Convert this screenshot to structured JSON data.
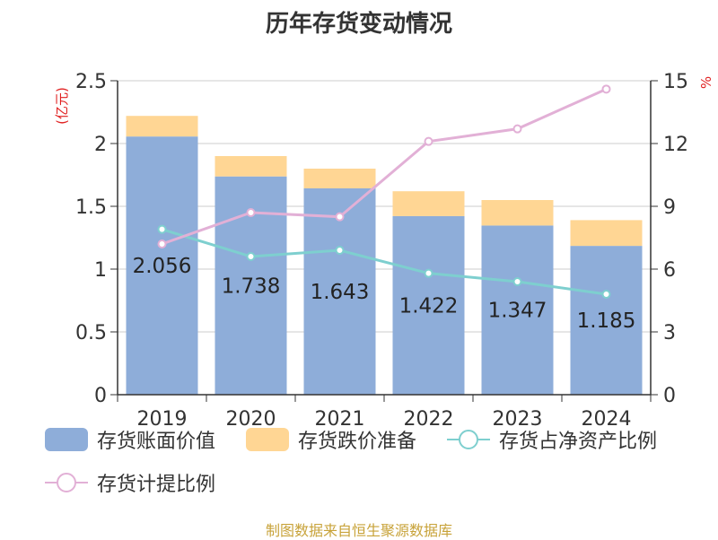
{
  "title": "历年存货变动情况",
  "source": "制图数据来自恒生聚源数据库",
  "chart_data": {
    "type": "bar",
    "categories": [
      "2019",
      "2020",
      "2021",
      "2022",
      "2023",
      "2024"
    ],
    "series": [
      {
        "name": "存货账面价值",
        "type": "bar",
        "axis": "left",
        "color": "#8eadd9",
        "values": [
          2.056,
          1.738,
          1.643,
          1.422,
          1.347,
          1.185
        ],
        "labels": [
          "2.056",
          "1.738",
          "1.643",
          "1.422",
          "1.347",
          "1.185"
        ]
      },
      {
        "name": "存货跌价准备",
        "type": "bar",
        "axis": "left",
        "color": "#ffd694",
        "values": [
          0.164,
          0.162,
          0.157,
          0.198,
          0.203,
          0.205
        ]
      },
      {
        "name": "存货占净资产比例",
        "type": "line",
        "axis": "right",
        "color": "#7ecfcf",
        "values": [
          7.9,
          6.6,
          6.9,
          5.8,
          5.4,
          4.8
        ]
      },
      {
        "name": "存货计提比例",
        "type": "line",
        "axis": "right",
        "color": "#e2b0d6",
        "values": [
          7.2,
          8.7,
          8.5,
          12.1,
          12.7,
          14.6
        ]
      }
    ],
    "y_left": {
      "label": "(亿元)",
      "min": 0,
      "max": 2.5,
      "ticks": [
        "0",
        "0.5",
        "1",
        "1.5",
        "2",
        "2.5"
      ]
    },
    "y_right": {
      "label": "%",
      "min": 0,
      "max": 15,
      "ticks": [
        "0",
        "3",
        "6",
        "9",
        "12",
        "15"
      ]
    },
    "grid": true,
    "legend_position": "bottom",
    "colors": {
      "left_axis_label": "#e02020",
      "right_axis_label": "#e02020"
    }
  }
}
